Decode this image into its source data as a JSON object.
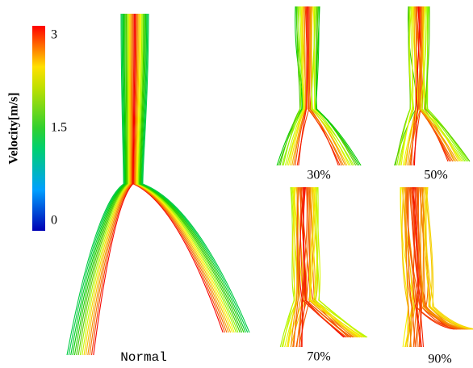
{
  "colorbar": {
    "title": "Velocity[m/s]",
    "ticks": [
      0,
      1.5,
      3
    ]
  },
  "panels": [
    {
      "label": "Normal"
    },
    {
      "label": "30%"
    },
    {
      "label": "50%"
    },
    {
      "label": "70%"
    },
    {
      "label": "90%"
    }
  ]
}
